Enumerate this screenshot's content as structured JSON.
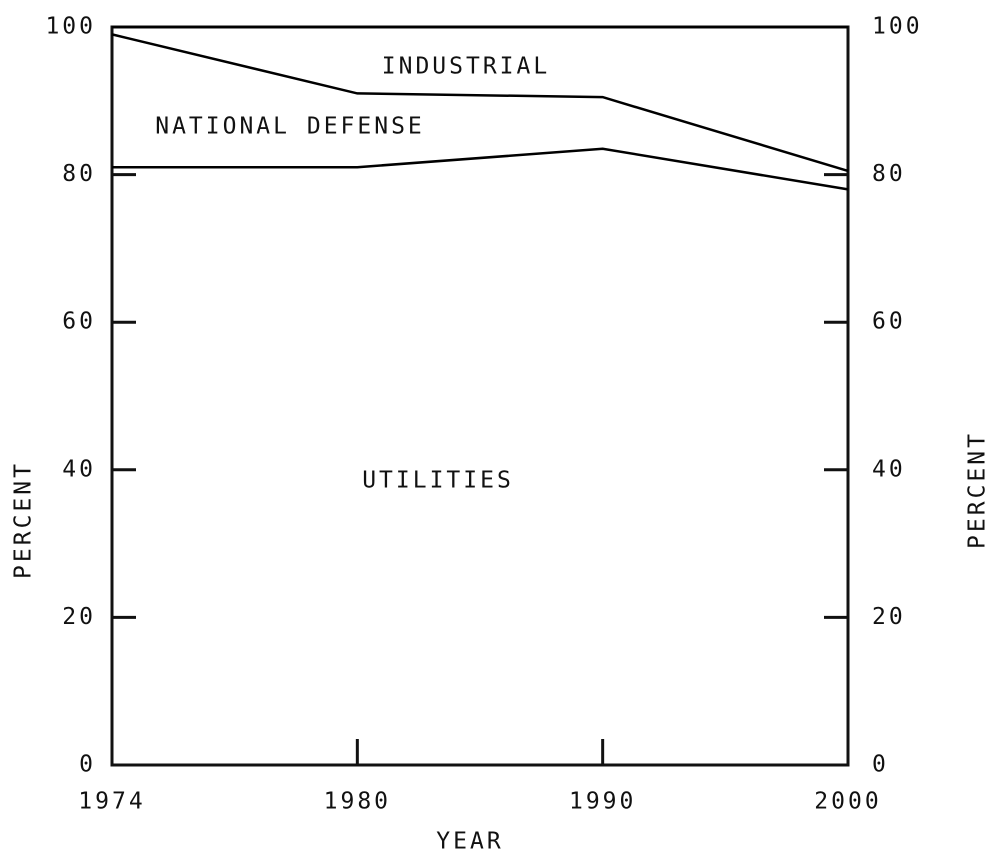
{
  "chart_data": {
    "type": "stacked_area",
    "xlabel": "YEAR",
    "ylabel": "PERCENT",
    "y2label": "PERCENT",
    "categories": [
      "1974",
      "1980",
      "1990",
      "2000"
    ],
    "series": [
      {
        "name": "UTILITIES",
        "color": "#000000",
        "values": [
          81,
          81,
          83.5,
          78
        ]
      },
      {
        "name": "NATIONAL DEFENSE",
        "color": "#000000",
        "values": [
          18,
          10,
          7,
          2.5
        ]
      },
      {
        "name": "INDUSTRIAL",
        "color": "#000000",
        "values": [
          1,
          9,
          9.5,
          19.5
        ]
      }
    ],
    "ylim": [
      0,
      100
    ],
    "yticks": [
      0,
      20,
      40,
      60,
      80,
      100
    ],
    "y2lim": [
      0,
      100
    ],
    "y2ticks": [
      0,
      20,
      40,
      60,
      80,
      100
    ],
    "grid": false
  }
}
